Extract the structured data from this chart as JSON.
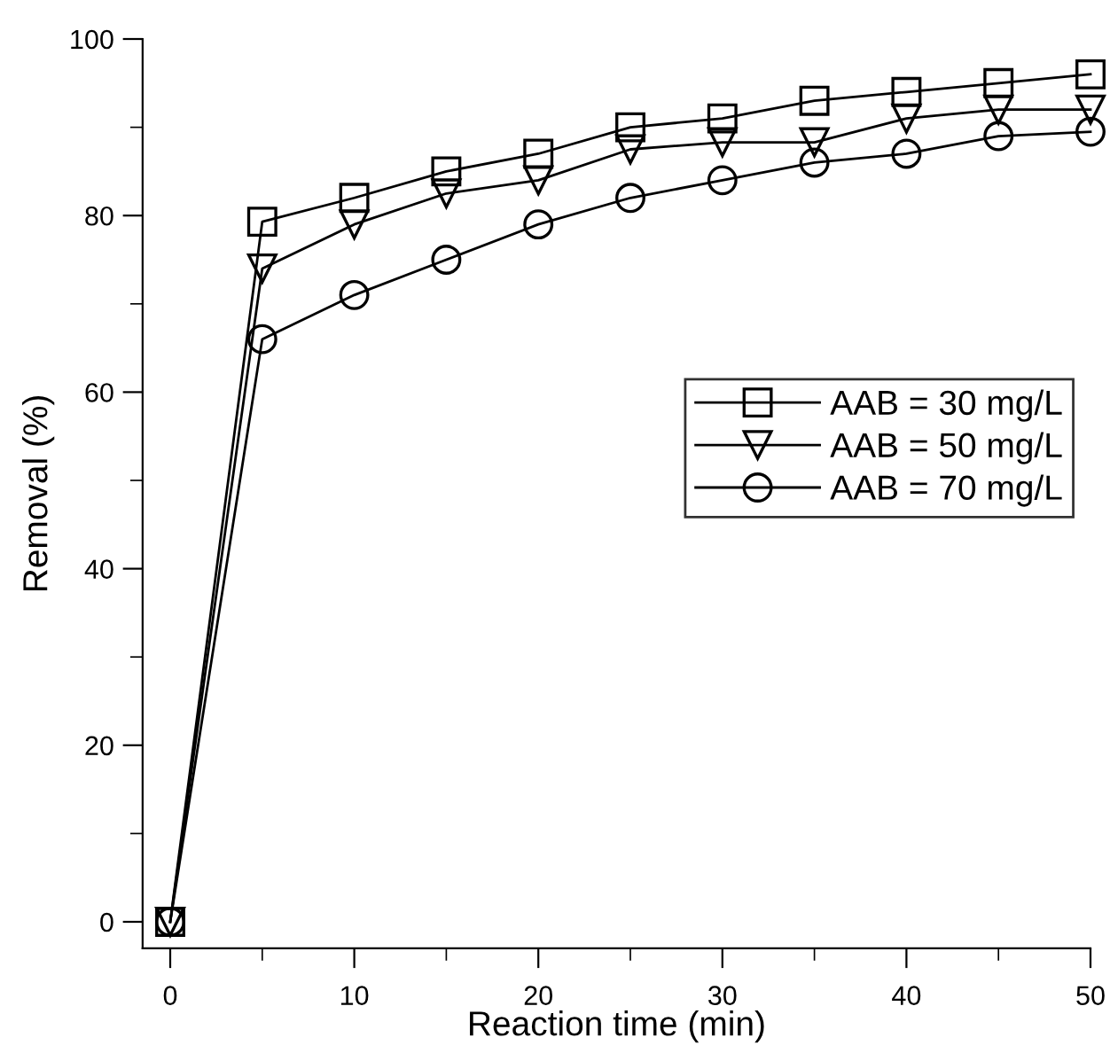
{
  "chart_data": {
    "type": "line",
    "xlabel": "Reaction time (min)",
    "ylabel": "Removal (%)",
    "x": [
      0,
      5,
      10,
      15,
      20,
      25,
      30,
      35,
      40,
      45,
      50
    ],
    "series": [
      {
        "name": "AAB = 30 mg/L",
        "color": "#000000",
        "marker": "square",
        "values": [
          0,
          79.3,
          82,
          85,
          87,
          90,
          91,
          93,
          94,
          95,
          96
        ]
      },
      {
        "name": "AAB = 50 mg/L",
        "color": "#000000",
        "marker": "triangle",
        "values": [
          0,
          74,
          79,
          82.5,
          84,
          87.5,
          88.3,
          88.3,
          91,
          92,
          92
        ]
      },
      {
        "name": "AAB = 70 mg/L",
        "color": "#000000",
        "marker": "circle",
        "values": [
          0,
          66,
          71,
          75,
          79,
          82,
          84,
          86,
          87,
          89,
          89.5
        ]
      }
    ],
    "xlim": [
      -1.5,
      50
    ],
    "ylim": [
      -3,
      100
    ],
    "xticks": [
      0,
      10,
      20,
      30,
      40,
      50
    ],
    "yticks": [
      0,
      20,
      40,
      60,
      80,
      100
    ],
    "grid": false,
    "legend": "right",
    "line_style": "solid"
  }
}
